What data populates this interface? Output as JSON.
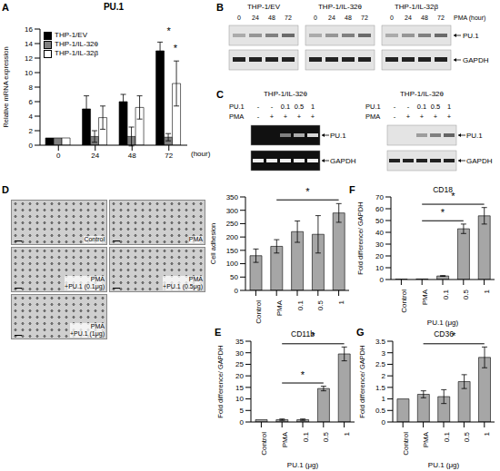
{
  "chart_data": [
    {
      "panel": "A",
      "type": "bar",
      "title": "PU.1",
      "y_label": "Relative mRNA expression",
      "x_label": "(hour)",
      "categories": [
        "0",
        "24",
        "48",
        "72"
      ],
      "series": [
        {
          "name": "THP-1/EV",
          "color": "#000000",
          "values": [
            1,
            5,
            6,
            13
          ],
          "errors": [
            0,
            1.8,
            1,
            1.2
          ]
        },
        {
          "name": "THP-1/IL-32θ",
          "color": "#808080",
          "values": [
            1,
            1.2,
            1.2,
            1.1
          ],
          "errors": [
            0,
            0.8,
            1.3,
            0.5
          ]
        },
        {
          "name": "THP-1/IL-32β",
          "color": "#ffffff",
          "values": [
            1,
            3.8,
            5.2,
            8.5
          ],
          "errors": [
            0,
            1.6,
            1.6,
            3.1
          ]
        }
      ],
      "ylim": [
        0,
        16
      ],
      "yticks": [
        0,
        2,
        4,
        6,
        8,
        10,
        12,
        14,
        16
      ],
      "legend": "upper left",
      "significance": [
        {
          "category": "72",
          "label": "*"
        },
        {
          "category": "72",
          "label": "*"
        }
      ]
    },
    {
      "panel": "D",
      "type": "bar",
      "y_label": "Cell adhesion",
      "categories": [
        "Control",
        "PMA",
        "0.1",
        "0.5",
        "1"
      ],
      "values": [
        130,
        165,
        220,
        210,
        290
      ],
      "errors": [
        25,
        25,
        40,
        70,
        35
      ],
      "color": "#a6a6a6",
      "ylim": [
        0,
        350
      ],
      "yticks": [
        0,
        50,
        100,
        150,
        200,
        250,
        300,
        350
      ],
      "significance": [
        {
          "from": "PMA",
          "to": "1",
          "label": "*"
        }
      ]
    },
    {
      "panel": "F",
      "type": "bar",
      "title": "CD18",
      "y_label": "Fold difference/ GAPDH",
      "x_label": "PU.1 (μg)",
      "categories": [
        "Control",
        "PMA",
        "0.1",
        "0.5",
        "1"
      ],
      "values": [
        0.3,
        0.5,
        3,
        43,
        54
      ],
      "errors": [
        0,
        0,
        0.3,
        4,
        7
      ],
      "color": "#a6a6a6",
      "ylim": [
        0,
        70
      ],
      "yticks": [
        0,
        10,
        20,
        30,
        40,
        50,
        60,
        70
      ],
      "significance": [
        {
          "from": "PMA",
          "to": "0.5",
          "label": "*"
        },
        {
          "from": "PMA",
          "to": "1",
          "label": "*"
        }
      ]
    },
    {
      "panel": "E",
      "type": "bar",
      "title": "CD11b",
      "y_label": "Fold difference/ GAPDH",
      "x_label": "PU.1 (μg)",
      "categories": [
        "Control",
        "PMA",
        "0.1",
        "0.5",
        "1"
      ],
      "values": [
        1,
        1,
        1,
        14.5,
        29.5
      ],
      "errors": [
        0,
        0.3,
        0.3,
        1,
        3
      ],
      "color": "#a6a6a6",
      "ylim": [
        0,
        35
      ],
      "yticks": [
        0,
        5,
        10,
        15,
        20,
        25,
        30,
        35
      ],
      "significance": [
        {
          "from": "PMA",
          "to": "0.5",
          "label": "*"
        },
        {
          "from": "PMA",
          "to": "1",
          "label": "*"
        }
      ]
    },
    {
      "panel": "G",
      "type": "bar",
      "title": "CD36",
      "y_label": "Fold difference/ GAPDH",
      "x_label": "PU.1 (μg)",
      "categories": [
        "Control",
        "PMA",
        "0.1",
        "0.5",
        "1"
      ],
      "values": [
        1,
        1.2,
        1.1,
        1.75,
        2.8
      ],
      "errors": [
        0,
        0.15,
        0.3,
        0.3,
        0.45
      ],
      "color": "#a6a6a6",
      "ylim": [
        0,
        3.5
      ],
      "yticks": [
        0,
        0.5,
        1,
        1.5,
        2,
        2.5,
        3,
        3.5
      ],
      "significance": [
        {
          "from": "PMA",
          "to": "1",
          "label": "*"
        }
      ]
    }
  ],
  "blots_B": {
    "panel": "B",
    "blots": [
      {
        "title": "THP-1/EV"
      },
      {
        "title": "THP-1/IL-32θ"
      },
      {
        "title": "THP-1/IL-32β"
      }
    ],
    "lanes": [
      0,
      24,
      48,
      72
    ],
    "lane_label": "PMA (hour)",
    "bands": [
      "PU.1",
      "GAPDH"
    ]
  },
  "blots_C": {
    "panel": "C",
    "blots": [
      {
        "title": "THP-1/IL-32θ",
        "rows": [
          {
            "label": "PU.1",
            "values": [
              "-",
              "-",
              "0.1",
              "0.5",
              "1"
            ]
          },
          {
            "label": "PMA",
            "values": [
              "-",
              "+",
              "+",
              "+",
              "+"
            ]
          }
        ],
        "bands": [
          "PU.1",
          "GAPDH"
        ]
      },
      {
        "title": "THP-1/IL-32θ",
        "rows": [
          {
            "label": "PU.1",
            "values": [
              "-",
              "-",
              "0.1",
              "0.5",
              "1"
            ]
          },
          {
            "label": "PMA",
            "values": [
              "-",
              "+",
              "+",
              "+",
              "+"
            ]
          }
        ],
        "bands": [
          "PU.1",
          "GAPDH"
        ]
      }
    ]
  },
  "micrographs_D": {
    "panel": "D",
    "images": [
      [
        "Control"
      ],
      [
        "PMA"
      ],
      [
        "PMA",
        "+PU.1 (0.1μg)"
      ],
      [
        "PMA",
        "+PU.1 (0.5μg)"
      ],
      [
        "PMA",
        "+PU.1 (1μg)"
      ]
    ]
  }
}
